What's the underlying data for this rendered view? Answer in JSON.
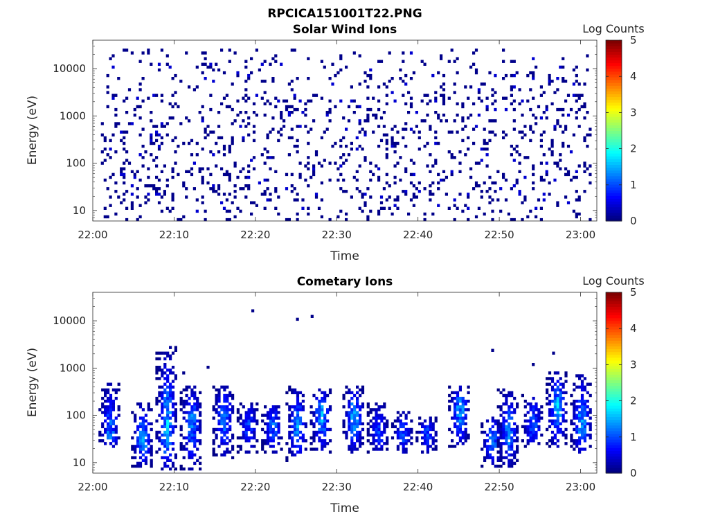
{
  "figure": {
    "title": "RPCICA151001T22.PNG"
  },
  "chart_data": [
    {
      "type": "heatmap",
      "title": "Solar Wind Ions",
      "xlabel": "Time",
      "ylabel": "Energy (eV)",
      "y_scale": "log",
      "xlim": [
        "22:00",
        "23:02"
      ],
      "ylim": [
        6,
        40000
      ],
      "x_ticks": [
        "22:00",
        "22:10",
        "22:20",
        "22:30",
        "22:40",
        "22:50",
        "23:00"
      ],
      "y_ticks": [
        "10",
        "100",
        "1000",
        "10000"
      ],
      "colorbar": {
        "label": "Log Counts",
        "range": [
          0,
          5
        ],
        "ticks": [
          "0",
          "1",
          "2",
          "3",
          "4",
          "5"
        ],
        "colormap": "jet"
      },
      "description_of_values": "sparse single-count (log counts ~0) pixels scattered across 22:01–23:01 over energies ~6–20000 eV, denser below 100 eV",
      "data_start": "22:01",
      "data_end": "23:01",
      "typical_log_counts": 0.05
    },
    {
      "type": "heatmap",
      "title": "Cometary Ions",
      "xlabel": "Time",
      "ylabel": "Energy (eV)",
      "y_scale": "log",
      "xlim": [
        "22:00",
        "23:02"
      ],
      "ylim": [
        6,
        40000
      ],
      "x_ticks": [
        "22:00",
        "22:10",
        "22:20",
        "22:30",
        "22:40",
        "22:50",
        "23:00"
      ],
      "y_ticks": [
        "10",
        "100",
        "1000",
        "10000"
      ],
      "colorbar": {
        "label": "Log Counts",
        "range": [
          0,
          5
        ],
        "ticks": [
          "0",
          "1",
          "2",
          "3",
          "4",
          "5"
        ],
        "colormap": "jet"
      },
      "bursts": [
        {
          "time": "22:02",
          "emin": 20,
          "emax": 500,
          "peak_energy": 40,
          "peak_log_counts": 1.3
        },
        {
          "time": "22:06",
          "emin": 8,
          "emax": 200,
          "peak_energy": 30,
          "peak_log_counts": 1.5
        },
        {
          "time": "22:09",
          "emin": 7,
          "emax": 3000,
          "peak_energy": 40,
          "peak_log_counts": 1.6
        },
        {
          "time": "22:12",
          "emin": 7,
          "emax": 400,
          "peak_energy": 80,
          "peak_log_counts": 1.4
        },
        {
          "time": "22:16",
          "emin": 12,
          "emax": 400,
          "peak_energy": 100,
          "peak_log_counts": 1.4
        },
        {
          "time": "22:19",
          "emin": 15,
          "emax": 200,
          "peak_energy": 60,
          "peak_log_counts": 1.0
        },
        {
          "time": "22:22",
          "emin": 15,
          "emax": 200,
          "peak_energy": 60,
          "peak_log_counts": 1.2
        },
        {
          "time": "22:25",
          "emin": 10,
          "emax": 400,
          "peak_energy": 60,
          "peak_log_counts": 1.4
        },
        {
          "time": "22:28",
          "emin": 15,
          "emax": 400,
          "peak_energy": 100,
          "peak_log_counts": 1.5
        },
        {
          "time": "22:32",
          "emin": 15,
          "emax": 400,
          "peak_energy": 100,
          "peak_log_counts": 1.6
        },
        {
          "time": "22:35",
          "emin": 15,
          "emax": 200,
          "peak_energy": 40,
          "peak_log_counts": 1.0
        },
        {
          "time": "22:38",
          "emin": 15,
          "emax": 120,
          "peak_energy": 40,
          "peak_log_counts": 1.1
        },
        {
          "time": "22:41",
          "emin": 15,
          "emax": 100,
          "peak_energy": 40,
          "peak_log_counts": 1.0
        },
        {
          "time": "22:45",
          "emin": 20,
          "emax": 400,
          "peak_energy": 150,
          "peak_log_counts": 1.5
        },
        {
          "time": "22:49",
          "emin": 8,
          "emax": 100,
          "peak_energy": 30,
          "peak_log_counts": 1.3
        },
        {
          "time": "22:51",
          "emin": 8,
          "emax": 350,
          "peak_energy": 40,
          "peak_log_counts": 1.4
        },
        {
          "time": "22:54",
          "emin": 20,
          "emax": 300,
          "peak_energy": 60,
          "peak_log_counts": 1.2
        },
        {
          "time": "22:57",
          "emin": 20,
          "emax": 800,
          "peak_energy": 150,
          "peak_log_counts": 1.6
        },
        {
          "time": "23:00",
          "emin": 15,
          "emax": 700,
          "peak_energy": 60,
          "peak_log_counts": 1.5
        }
      ]
    }
  ]
}
